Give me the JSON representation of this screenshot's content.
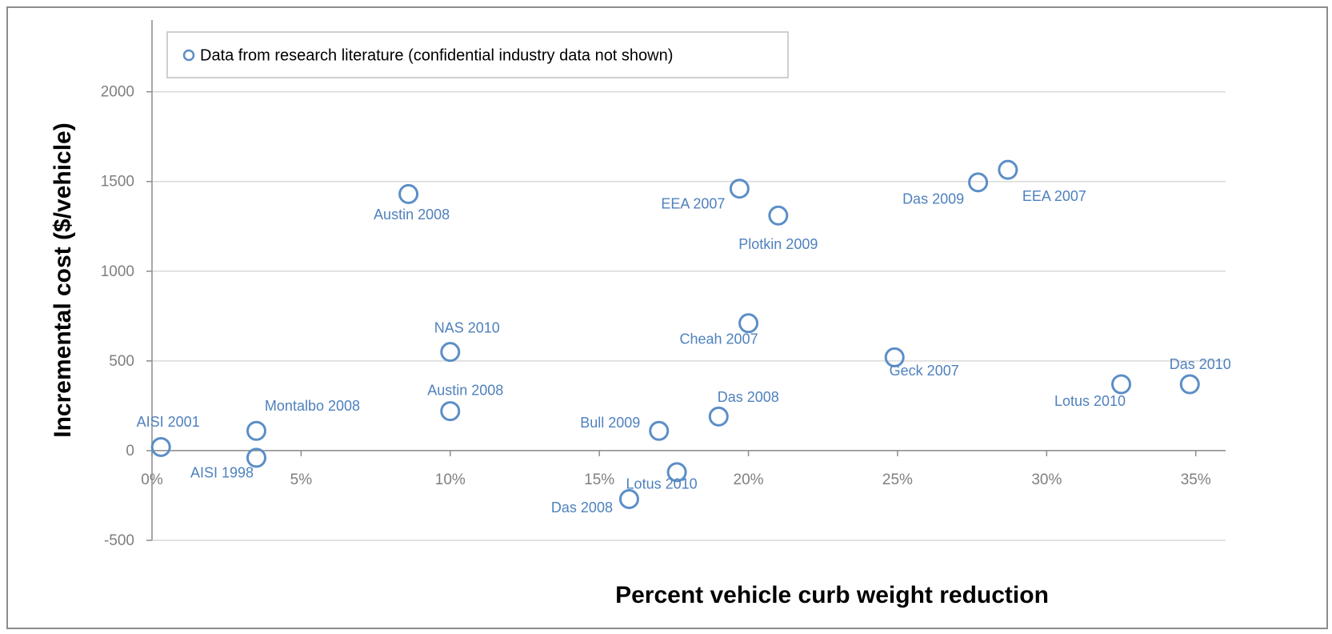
{
  "chart_data": {
    "type": "scatter",
    "x_label": "Percent vehicle curb weight reduction",
    "y_label": "Incremental cost ($/vehicle)",
    "legend": "Data from research literature (confidential industry data not shown)",
    "legend_position": "top-left",
    "color": "#5b8ec7",
    "grid": true,
    "xlim": [
      0,
      36
    ],
    "ylim": [
      -500,
      2400
    ],
    "xticks": [
      {
        "value": 0,
        "label": "0%"
      },
      {
        "value": 5,
        "label": "5%"
      },
      {
        "value": 10,
        "label": "10%"
      },
      {
        "value": 15,
        "label": "15%"
      },
      {
        "value": 20,
        "label": "20%"
      },
      {
        "value": 25,
        "label": "25%"
      },
      {
        "value": 30,
        "label": "30%"
      },
      {
        "value": 35,
        "label": "35%"
      }
    ],
    "yticks": [
      -500,
      0,
      500,
      1000,
      1500,
      2000
    ],
    "labels": [
      "AISI 2001",
      "AISI 1998",
      "Montalbo 2008",
      "Austin 2008",
      "NAS 2010",
      "Austin 2008",
      "Das 2008",
      "Lotus 2010",
      "Bull 2009",
      "Das 2008",
      "EEA 2007",
      "Plotkin 2009",
      "Cheah 2007",
      "Geck 2007",
      "Das 2009",
      "EEA 2007",
      "Lotus 2010",
      "Das 2010"
    ],
    "x": [
      0.3,
      3.5,
      3.5,
      8.6,
      10.0,
      10.0,
      16.0,
      17.6,
      17.0,
      19.0,
      19.7,
      21.0,
      20.0,
      24.9,
      27.7,
      28.7,
      32.5,
      34.8
    ],
    "values": [
      20,
      -40,
      110,
      1430,
      550,
      220,
      -270,
      -120,
      110,
      190,
      1460,
      1310,
      710,
      520,
      1495,
      1565,
      370,
      370
    ]
  }
}
